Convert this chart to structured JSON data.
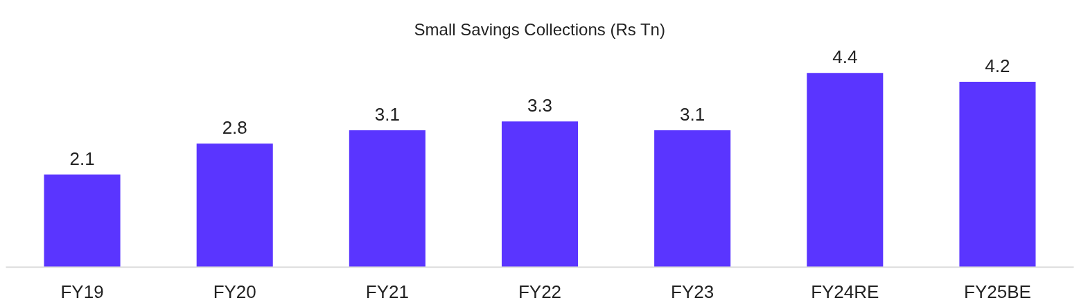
{
  "chart_data": {
    "type": "bar",
    "title": "Small Savings Collections (Rs Tn)",
    "categories": [
      "FY19",
      "FY20",
      "FY21",
      "FY22",
      "FY23",
      "FY24RE",
      "FY25BE"
    ],
    "values": [
      2.1,
      2.8,
      3.1,
      3.3,
      3.1,
      4.4,
      4.2
    ],
    "color": "#5a35ff",
    "data_labels": true,
    "grid": false
  }
}
